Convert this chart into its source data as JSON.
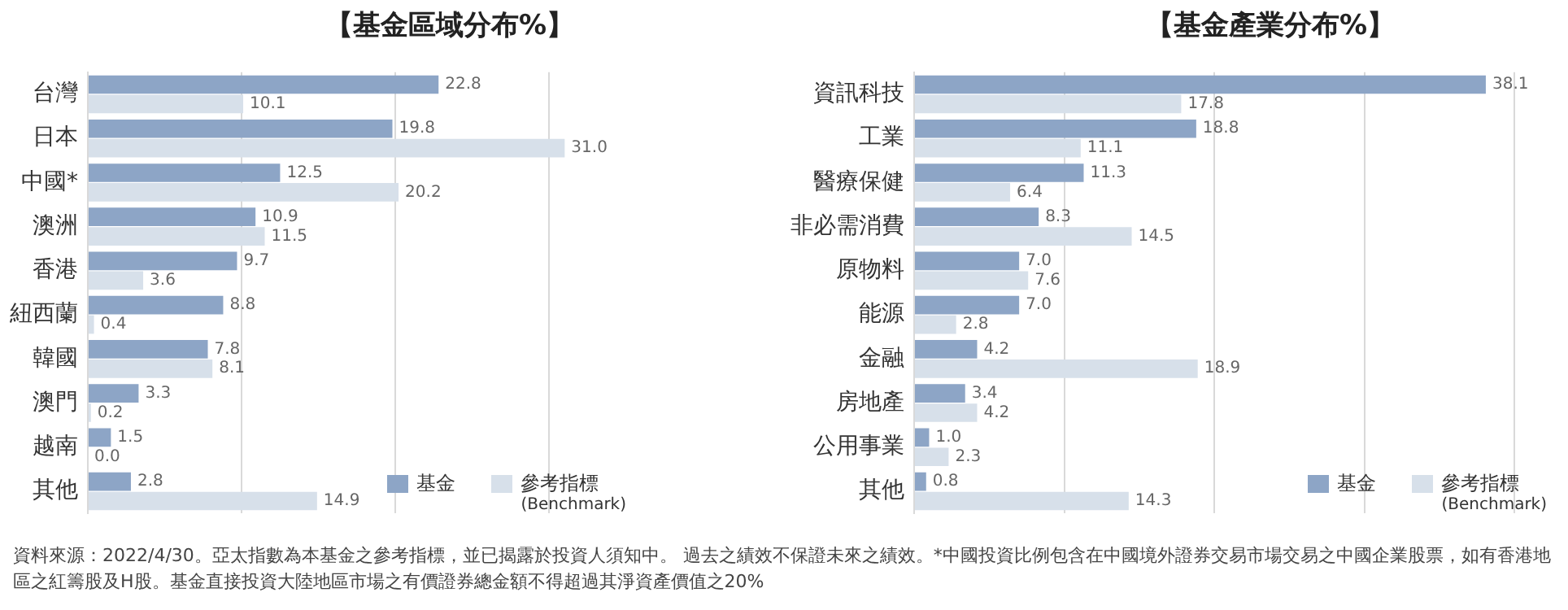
{
  "chart_data": [
    {
      "type": "bar",
      "orientation": "horizontal",
      "title": "【基金區域分布%】",
      "categories": [
        "台灣",
        "日本",
        "中國*",
        "澳洲",
        "香港",
        "紐西蘭",
        "韓國",
        "澳門",
        "越南",
        "其他"
      ],
      "series": [
        {
          "name": "基金",
          "color": "#8da5c6",
          "values": [
            22.8,
            19.8,
            12.5,
            10.9,
            9.7,
            8.8,
            7.8,
            3.3,
            1.5,
            2.8
          ],
          "value_labels": [
            "22.8",
            "19.8",
            "12.5",
            "10.9",
            "9.7",
            "8.8",
            "7.8",
            "3.3",
            "1.5",
            "2.8"
          ]
        },
        {
          "name": "參考指標 (Benchmark)",
          "color": "#d7e0ea",
          "values": [
            10.1,
            31,
            20.2,
            11.5,
            3.6,
            0.4,
            8.1,
            0.2,
            0,
            14.9
          ],
          "value_labels": [
            "10.1",
            "31.0",
            "20.2",
            "11.5",
            "3.6",
            "0.4",
            "8.1",
            "0.2",
            "0.0",
            "14.9"
          ]
        }
      ],
      "xticks": [
        {
          "value": 0,
          "label": null
        },
        {
          "value": 10,
          "label": null
        },
        {
          "value": 20,
          "label": null
        },
        {
          "value": 30,
          "label": null
        }
      ],
      "tick_labels": "y",
      "grid": "x",
      "legend": "bottom right",
      "annotations": [
        "資料來源：2022/4/30。亞太指數為本基金之參考指標，並已揭露於投資人須知中。 過去之績效不保證未來之績效。*中國投資比例包含在中國境外證券交易市場交易之中國企業股票，如有香港地區之紅籌股及H股。基金直接投資大陸地區市場之有價證券總金額不得超過其淨資產價值之20%"
      ]
    },
    {
      "type": "bar",
      "orientation": "horizontal",
      "title": "【基金產業分布%】",
      "categories": [
        "資訊科技",
        "工業",
        "醫療保健",
        "非必需消費",
        "原物料",
        "能源",
        "金融",
        "房地產",
        "公用事業",
        "其他"
      ],
      "series": [
        {
          "name": "基金",
          "color": "#8da5c6",
          "values": [
            38.1,
            18.8,
            11.3,
            8.3,
            7,
            7,
            4.2,
            3.4,
            1,
            0.8
          ],
          "value_labels": [
            "38.1",
            "18.8",
            "11.3",
            "8.3",
            "7.0",
            "7.0",
            "4.2",
            "3.4",
            "1.0",
            "0.8"
          ]
        },
        {
          "name": "參考指標 (Benchmark)",
          "color": "#d7e0ea",
          "values": [
            17.8,
            11.1,
            6.4,
            14.5,
            7.6,
            2.8,
            18.9,
            4.2,
            2.3,
            14.3
          ],
          "value_labels": [
            "17.8",
            "11.1",
            "6.4",
            "14.5",
            "7.6",
            "2.8",
            "18.9",
            "4.2",
            "2.3",
            "14.3"
          ]
        }
      ],
      "xlim": [
        0,
        40
      ],
      "xticks": [
        {
          "value": 0,
          "label": null
        },
        {
          "value": 10,
          "label": null
        },
        {
          "value": 20,
          "label": null
        },
        {
          "value": 30,
          "label": null
        },
        {
          "value": 40,
          "label": null
        }
      ],
      "tick_labels": "y",
      "grid": "x",
      "legend": "bottom right"
    }
  ]
}
